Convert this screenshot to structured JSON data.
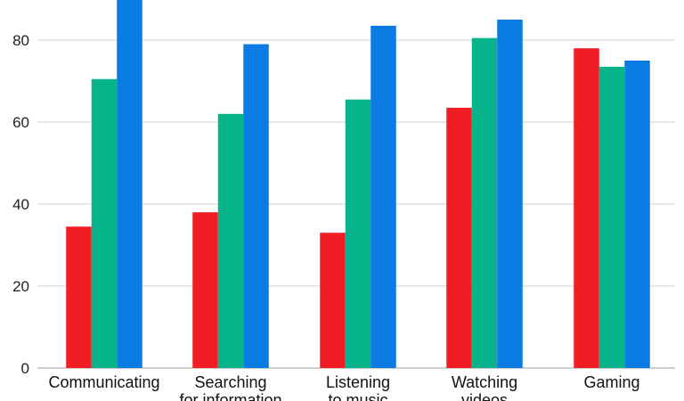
{
  "chart_data": {
    "type": "bar",
    "categories": [
      [
        "Communicating"
      ],
      [
        "Searching",
        "for information"
      ],
      [
        "Listening",
        "to music"
      ],
      [
        "Watching",
        "videos"
      ],
      [
        "Gaming"
      ]
    ],
    "series": [
      {
        "values": [
          34.5,
          38,
          33,
          63.5,
          78
        ],
        "color": "#f21d24"
      },
      {
        "values": [
          70.5,
          62,
          65.5,
          80.5,
          73.5
        ],
        "color": "#07b38b"
      },
      {
        "values": [
          92,
          79,
          83.5,
          85,
          75
        ],
        "color": "#0a7be3"
      }
    ],
    "yticks": [
      0,
      20,
      40,
      60,
      80
    ],
    "ylim": [
      0,
      92
    ],
    "grid": true,
    "gridColor": "#d9d9d9"
  }
}
